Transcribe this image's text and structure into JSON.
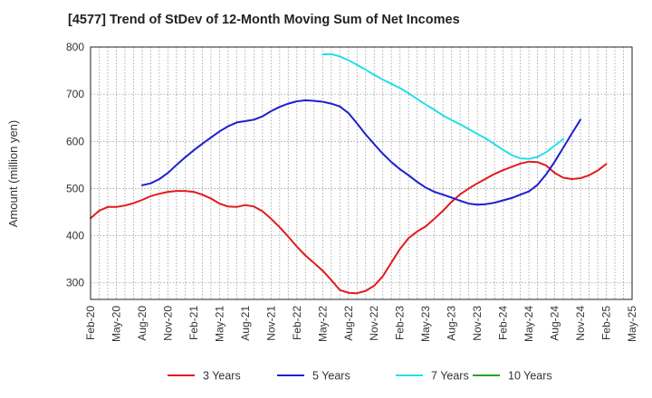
{
  "chart_data": {
    "type": "line",
    "title": "[4577]  Trend of StDev of 12-Month Moving Sum of Net Incomes",
    "ylabel": "Amount (million yen)",
    "xlabel": "",
    "ylim": [
      265,
      800
    ],
    "yticks": [
      300,
      400,
      500,
      600,
      700,
      800
    ],
    "x_tick_labels": [
      "Feb-20",
      "May-20",
      "Aug-20",
      "Nov-20",
      "Feb-21",
      "May-21",
      "Aug-21",
      "Nov-21",
      "Feb-22",
      "May-22",
      "Aug-22",
      "Nov-22",
      "Feb-23",
      "May-23",
      "Aug-23",
      "Nov-23",
      "Feb-24",
      "May-24",
      "Aug-24",
      "Nov-24",
      "Feb-25",
      "May-25"
    ],
    "grid": true,
    "legend_position": "bottom",
    "series": [
      {
        "name": "3 Years",
        "color": "#e31a1c",
        "points": [
          [
            0,
            437
          ],
          [
            1,
            453
          ],
          [
            2,
            461
          ],
          [
            3,
            461
          ],
          [
            4,
            464
          ],
          [
            5,
            469
          ],
          [
            6,
            476
          ],
          [
            7,
            484
          ],
          [
            8,
            489
          ],
          [
            9,
            493
          ],
          [
            10,
            495
          ],
          [
            11,
            495
          ],
          [
            12,
            493
          ],
          [
            13,
            487
          ],
          [
            14,
            479
          ],
          [
            15,
            468
          ],
          [
            16,
            462
          ],
          [
            17,
            461
          ],
          [
            18,
            465
          ],
          [
            19,
            462
          ],
          [
            20,
            452
          ],
          [
            21,
            436
          ],
          [
            22,
            418
          ],
          [
            23,
            398
          ],
          [
            24,
            377
          ],
          [
            25,
            358
          ],
          [
            26,
            342
          ],
          [
            27,
            326
          ],
          [
            28,
            306
          ],
          [
            29,
            285
          ],
          [
            30,
            279
          ],
          [
            31,
            278
          ],
          [
            32,
            283
          ],
          [
            33,
            294
          ],
          [
            34,
            314
          ],
          [
            35,
            343
          ],
          [
            36,
            372
          ],
          [
            37,
            395
          ],
          [
            38,
            409
          ],
          [
            39,
            420
          ],
          [
            40,
            436
          ],
          [
            41,
            453
          ],
          [
            42,
            472
          ],
          [
            43,
            488
          ],
          [
            44,
            500
          ],
          [
            45,
            511
          ],
          [
            46,
            521
          ],
          [
            47,
            531
          ],
          [
            48,
            539
          ],
          [
            49,
            546
          ],
          [
            50,
            553
          ],
          [
            51,
            557
          ],
          [
            52,
            556
          ],
          [
            53,
            549
          ],
          [
            54,
            533
          ],
          [
            55,
            523
          ],
          [
            56,
            520
          ],
          [
            57,
            522
          ],
          [
            58,
            528
          ],
          [
            59,
            538
          ],
          [
            60,
            552
          ]
        ]
      },
      {
        "name": "5 Years",
        "color": "#1f1fd0",
        "points": [
          [
            6,
            507
          ],
          [
            7,
            511
          ],
          [
            8,
            520
          ],
          [
            9,
            533
          ],
          [
            10,
            550
          ],
          [
            11,
            566
          ],
          [
            12,
            581
          ],
          [
            13,
            595
          ],
          [
            14,
            608
          ],
          [
            15,
            621
          ],
          [
            16,
            632
          ],
          [
            17,
            640
          ],
          [
            18,
            643
          ],
          [
            19,
            646
          ],
          [
            20,
            653
          ],
          [
            21,
            664
          ],
          [
            22,
            673
          ],
          [
            23,
            680
          ],
          [
            24,
            685
          ],
          [
            25,
            687
          ],
          [
            26,
            686
          ],
          [
            27,
            684
          ],
          [
            28,
            680
          ],
          [
            29,
            674
          ],
          [
            30,
            660
          ],
          [
            31,
            638
          ],
          [
            32,
            615
          ],
          [
            33,
            594
          ],
          [
            34,
            574
          ],
          [
            35,
            556
          ],
          [
            36,
            541
          ],
          [
            37,
            528
          ],
          [
            38,
            514
          ],
          [
            39,
            502
          ],
          [
            40,
            493
          ],
          [
            41,
            487
          ],
          [
            42,
            481
          ],
          [
            43,
            474
          ],
          [
            44,
            468
          ],
          [
            45,
            466
          ],
          [
            46,
            467
          ],
          [
            47,
            470
          ],
          [
            48,
            475
          ],
          [
            49,
            480
          ],
          [
            50,
            487
          ],
          [
            51,
            494
          ],
          [
            52,
            508
          ],
          [
            53,
            530
          ],
          [
            54,
            557
          ],
          [
            55,
            587
          ],
          [
            56,
            617
          ],
          [
            57,
            646
          ]
        ]
      },
      {
        "name": "7 Years",
        "color": "#22e0e8",
        "points": [
          [
            27,
            784
          ],
          [
            28,
            785
          ],
          [
            29,
            780
          ],
          [
            30,
            772
          ],
          [
            31,
            762
          ],
          [
            32,
            752
          ],
          [
            33,
            741
          ],
          [
            34,
            731
          ],
          [
            35,
            722
          ],
          [
            36,
            713
          ],
          [
            37,
            702
          ],
          [
            38,
            690
          ],
          [
            39,
            678
          ],
          [
            40,
            667
          ],
          [
            41,
            655
          ],
          [
            42,
            645
          ],
          [
            43,
            636
          ],
          [
            44,
            626
          ],
          [
            45,
            616
          ],
          [
            46,
            606
          ],
          [
            47,
            594
          ],
          [
            48,
            582
          ],
          [
            49,
            571
          ],
          [
            50,
            564
          ],
          [
            51,
            563
          ],
          [
            52,
            567
          ],
          [
            53,
            577
          ],
          [
            54,
            591
          ],
          [
            55,
            605
          ]
        ]
      },
      {
        "name": "10 Years",
        "color": "#2ca02c",
        "points": []
      }
    ]
  }
}
